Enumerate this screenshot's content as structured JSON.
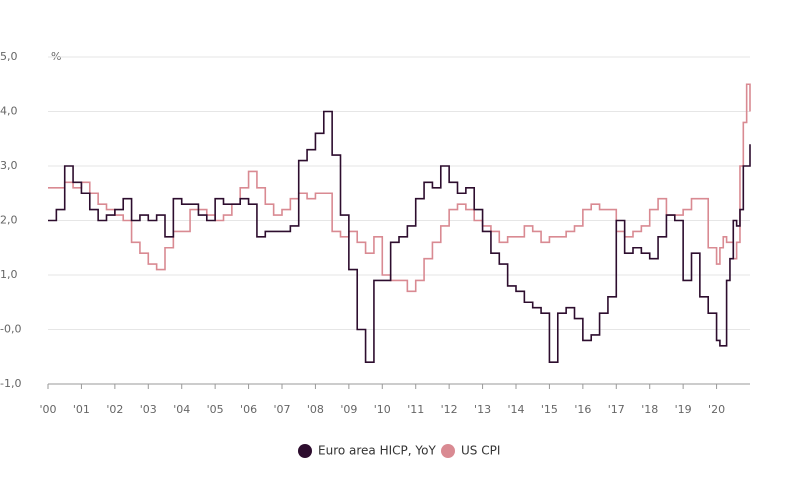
{
  "chart_data": {
    "type": "line",
    "step": true,
    "unit_label": "%",
    "x": [
      2000,
      2000.25,
      2000.5,
      2000.75,
      2001,
      2001.25,
      2001.5,
      2001.75,
      2002,
      2002.25,
      2002.5,
      2002.75,
      2003,
      2003.25,
      2003.5,
      2003.75,
      2004,
      2004.25,
      2004.5,
      2004.75,
      2005,
      2005.25,
      2005.5,
      2005.75,
      2006,
      2006.25,
      2006.5,
      2006.75,
      2007,
      2007.25,
      2007.5,
      2007.75,
      2008,
      2008.25,
      2008.5,
      2008.75,
      2009,
      2009.25,
      2009.5,
      2009.75,
      2010,
      2010.25,
      2010.5,
      2010.75,
      2011,
      2011.25,
      2011.5,
      2011.75,
      2012,
      2012.25,
      2012.5,
      2012.75,
      2013,
      2013.25,
      2013.5,
      2013.75,
      2014,
      2014.25,
      2014.5,
      2014.75,
      2015,
      2015.25,
      2015.5,
      2015.75,
      2016,
      2016.25,
      2016.5,
      2016.75,
      2017,
      2017.25,
      2017.5,
      2017.75,
      2018,
      2018.25,
      2018.5,
      2018.75,
      2019,
      2019.25,
      2019.5,
      2019.75,
      2020,
      2020.1,
      2020.2,
      2020.3,
      2020.4,
      2020.5,
      2020.6,
      2020.7,
      2020.8,
      2020.9,
      2021
    ],
    "series": [
      {
        "name": "Euro area HICP, YoY",
        "color": "#2d0d2e",
        "values": [
          2.0,
          2.2,
          3.0,
          2.7,
          2.5,
          2.2,
          2.0,
          2.1,
          2.2,
          2.4,
          2.0,
          2.1,
          2.0,
          2.1,
          1.7,
          2.4,
          2.3,
          2.3,
          2.1,
          2.0,
          2.4,
          2.3,
          2.3,
          2.4,
          2.3,
          1.7,
          1.8,
          1.8,
          1.8,
          1.9,
          3.1,
          3.3,
          3.6,
          4.0,
          3.2,
          2.1,
          1.1,
          0.0,
          -0.6,
          0.9,
          0.9,
          1.6,
          1.7,
          1.9,
          2.4,
          2.7,
          2.6,
          3.0,
          2.7,
          2.5,
          2.6,
          2.2,
          1.8,
          1.4,
          1.2,
          0.8,
          0.7,
          0.5,
          0.4,
          0.3,
          -0.6,
          0.3,
          0.4,
          0.2,
          -0.2,
          -0.1,
          0.3,
          0.6,
          2.0,
          1.4,
          1.5,
          1.4,
          1.3,
          1.7,
          2.1,
          2.0,
          0.9,
          1.4,
          0.6,
          0.3,
          -0.2,
          -0.3,
          -0.3,
          0.9,
          1.3,
          2.0,
          1.9,
          2.2,
          3.0,
          3.0,
          3.4
        ]
      },
      {
        "name": "US CPI",
        "color": "#d98a92",
        "values": [
          2.6,
          2.6,
          2.7,
          2.6,
          2.7,
          2.5,
          2.3,
          2.2,
          2.1,
          2.0,
          1.6,
          1.4,
          1.2,
          1.1,
          1.5,
          1.8,
          1.8,
          2.2,
          2.2,
          2.1,
          2.0,
          2.1,
          2.3,
          2.6,
          2.9,
          2.6,
          2.3,
          2.1,
          2.2,
          2.4,
          2.5,
          2.4,
          2.5,
          2.5,
          1.8,
          1.7,
          1.8,
          1.6,
          1.4,
          1.7,
          1.0,
          0.9,
          0.9,
          0.7,
          0.9,
          1.3,
          1.6,
          1.9,
          2.2,
          2.3,
          2.2,
          2.0,
          1.9,
          1.8,
          1.6,
          1.7,
          1.7,
          1.9,
          1.8,
          1.6,
          1.7,
          1.7,
          1.8,
          1.9,
          2.2,
          2.3,
          2.2,
          2.2,
          1.8,
          1.7,
          1.8,
          1.9,
          2.2,
          2.4,
          2.1,
          2.1,
          2.2,
          2.4,
          2.4,
          1.5,
          1.2,
          1.5,
          1.7,
          1.6,
          1.6,
          1.3,
          1.6,
          3.0,
          3.8,
          4.5,
          4.0
        ]
      }
    ],
    "xlim": [
      2000,
      2021
    ],
    "xticks": [
      {
        "value": 2000,
        "label": "'00"
      },
      {
        "value": 2001,
        "label": "'01"
      },
      {
        "value": 2002,
        "label": "'02"
      },
      {
        "value": 2003,
        "label": "'03"
      },
      {
        "value": 2004,
        "label": "'04"
      },
      {
        "value": 2005,
        "label": "'05"
      },
      {
        "value": 2006,
        "label": "'06"
      },
      {
        "value": 2007,
        "label": "'07"
      },
      {
        "value": 2008,
        "label": "'08"
      },
      {
        "value": 2009,
        "label": "'09"
      },
      {
        "value": 2010,
        "label": "'10"
      },
      {
        "value": 2011,
        "label": "'11"
      },
      {
        "value": 2012,
        "label": "'12"
      },
      {
        "value": 2013,
        "label": "'13"
      },
      {
        "value": 2014,
        "label": "'14"
      },
      {
        "value": 2015,
        "label": "'15"
      },
      {
        "value": 2016,
        "label": "'16"
      },
      {
        "value": 2017,
        "label": "'17"
      },
      {
        "value": 2018,
        "label": "'18"
      },
      {
        "value": 2019,
        "label": "'19"
      },
      {
        "value": 2020,
        "label": "'20"
      }
    ],
    "ylim": [
      -1,
      5
    ],
    "yticks": [
      {
        "value": 5,
        "label": "5,0"
      },
      {
        "value": 4,
        "label": "4,0"
      },
      {
        "value": 3,
        "label": "3,0"
      },
      {
        "value": 2,
        "label": "2,0"
      },
      {
        "value": 1,
        "label": "1,0"
      },
      {
        "value": 0,
        "label": "-0,0"
      },
      {
        "value": -1,
        "label": "-1,0"
      }
    ],
    "grid": true,
    "legend": "bottom"
  }
}
